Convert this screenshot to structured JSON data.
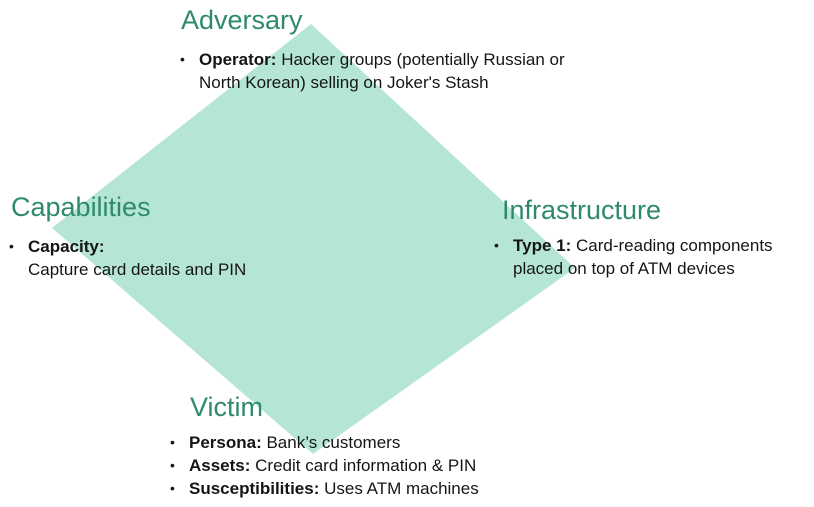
{
  "diamond": {
    "fill_color": "#b5e6d5"
  },
  "adversary": {
    "title": "Adversary",
    "items": [
      {
        "label": "Operator:",
        "text": " Hacker groups (potentially Russian or",
        "text_cont": "North Korean) selling on Joker's Stash"
      }
    ]
  },
  "capabilities": {
    "title": "Capabilities",
    "items": [
      {
        "label": "Capacity:",
        "text_cont": "Capture card details and PIN"
      }
    ]
  },
  "infrastructure": {
    "title": "Infrastructure",
    "items": [
      {
        "label": "Type 1:",
        "text": " Card-reading components",
        "text_cont": "placed on top of ATM devices"
      }
    ]
  },
  "victim": {
    "title": "Victim",
    "items": [
      {
        "label": "Persona:",
        "text": " Bank’s customers"
      },
      {
        "label": "Assets:",
        "text": " Credit card information & PIN"
      },
      {
        "label": "Susceptibilities:",
        "text": " Uses ATM machines"
      }
    ]
  },
  "colors": {
    "heading": "#2f8a6c",
    "text": "#151515"
  }
}
